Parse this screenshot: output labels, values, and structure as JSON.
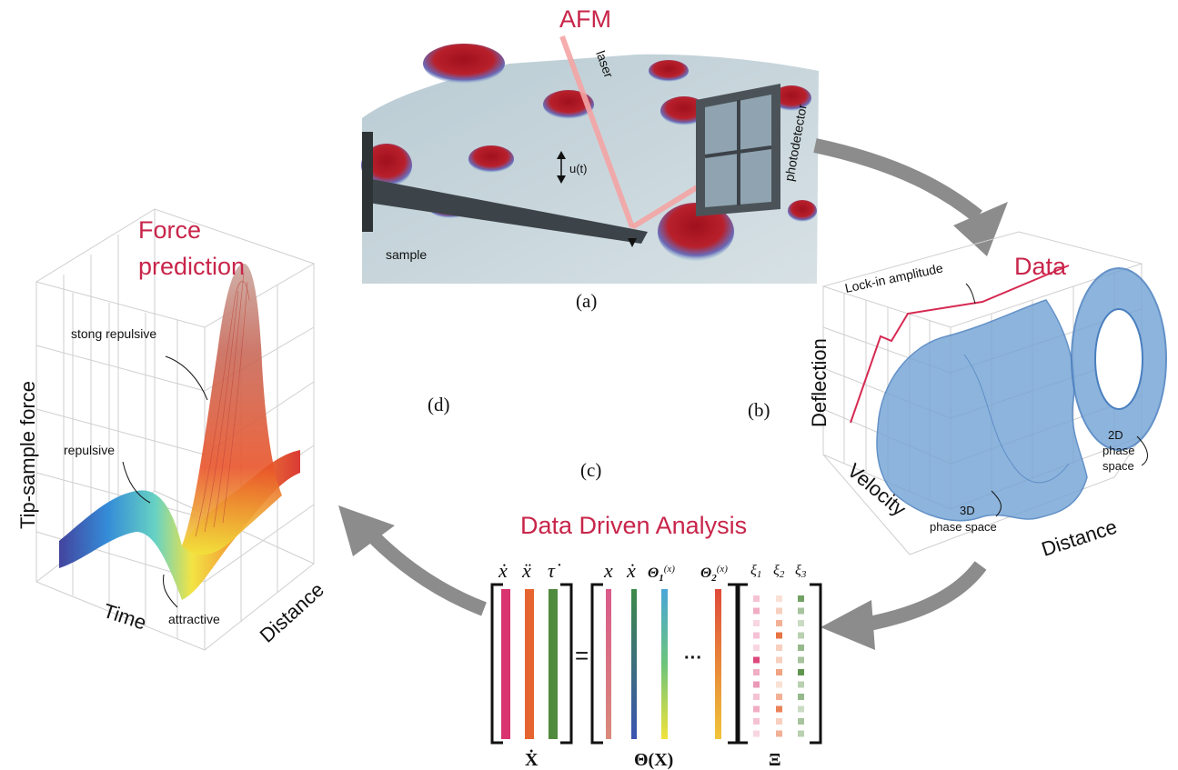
{
  "afm": {
    "title": "AFM",
    "laser": "laser",
    "photodetector": "photodetector",
    "u": "u(t)",
    "sample": "sample",
    "panel": "(a)"
  },
  "data_panel": {
    "title": "Data",
    "lockin": "Lock-in amplitude",
    "deflection": "Deflection",
    "velocity": "Velocity",
    "distance": "Distance",
    "phase3d_line1": "3D",
    "phase3d_line2": "phase space",
    "phase2d_line1": "2D",
    "phase2d_line2": "phase",
    "phase2d_line3": "space",
    "panel": "(b)"
  },
  "analysis": {
    "title": "Data Driven Analysis",
    "panel": "(c)",
    "lhs_top": [
      "ẋ",
      "ẍ",
      "τ̇"
    ],
    "rhs_top": [
      "x",
      "ẋ",
      "Θ",
      "(x)",
      "Θ",
      "(x)"
    ],
    "xi_top": [
      "ξ1",
      "ξ2",
      "ξ3"
    ],
    "xi_sub": [
      "1",
      "2",
      "3"
    ],
    "theta_sub": [
      "1",
      "2"
    ],
    "bottom_x": "Ẋ",
    "bottom_theta": "Θ(X)",
    "bottom_xi": "Ξ",
    "equals": "=",
    "dots": "···",
    "colors": {
      "lhs": [
        "#d9346f",
        "#e6642f",
        "#4f8a3d"
      ],
      "xi": [
        "#d9346f",
        "#e6642f",
        "#4f8a3d"
      ]
    }
  },
  "force": {
    "title_line1": "Force",
    "title_line2": "prediction",
    "ylabel": "Tip-sample force",
    "xlabel": "Time",
    "zlabel": "Distance",
    "strong": "stong repulsive",
    "repulsive": "repulsive",
    "attractive": "attractive",
    "panel": "(d)"
  }
}
